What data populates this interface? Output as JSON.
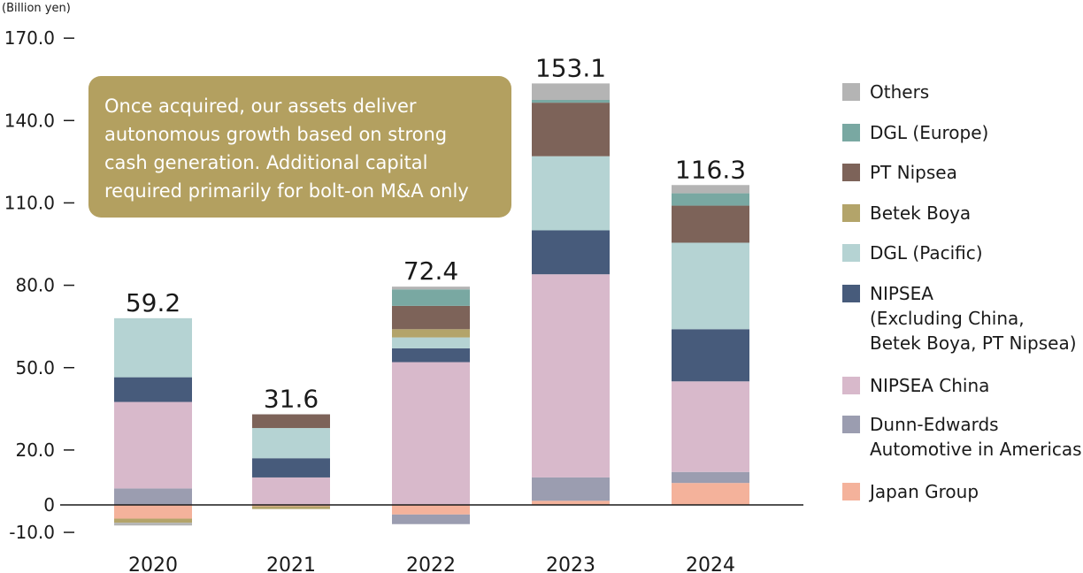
{
  "unit_label": "(Billion yen)",
  "callout": {
    "lines": [
      "Once acquired, our assets deliver",
      "autonomous growth based on strong",
      "cash generation. Additional capital",
      "required primarily for bolt-on M&A only"
    ],
    "color": "#b3a060"
  },
  "chart_data": {
    "type": "bar",
    "stacked": true,
    "categories": [
      "2020",
      "2021",
      "2022",
      "2023",
      "2024"
    ],
    "totals": [
      "59.2",
      "31.6",
      "72.4",
      "153.1",
      "116.3"
    ],
    "y_ticks": [
      "170.0",
      "140.0",
      "110.0",
      "80.0",
      "50.0",
      "20.0",
      "0",
      "-10.0"
    ],
    "y_tick_values": [
      170,
      140,
      110,
      80,
      50,
      20,
      0,
      -10
    ],
    "ylim": [
      -10,
      170
    ],
    "grid": false,
    "legend_position": "right",
    "series": [
      {
        "name": "Japan Group",
        "color": "#f4b29b",
        "values": [
          -5.0,
          -0.5,
          -3.5,
          1.5,
          8.0
        ]
      },
      {
        "name": "Dunn-Edwards\nAutomotive in Americas",
        "color": "#9b9db0",
        "values": [
          6.0,
          0,
          -3.5,
          8.5,
          4.0
        ]
      },
      {
        "name": "NIPSEA China",
        "color": "#d8b9cb",
        "values": [
          31.5,
          10.0,
          52.0,
          74.0,
          33.0
        ]
      },
      {
        "name": "NIPSEA\n(Excluding China,\nBetek Boya, PT Nipsea)",
        "color": "#475b7b",
        "values": [
          9.0,
          7.0,
          5.0,
          16.0,
          19.0
        ]
      },
      {
        "name": "DGL (Pacific)",
        "color": "#b5d3d3",
        "values": [
          21.5,
          11.0,
          4.0,
          27.0,
          31.5
        ]
      },
      {
        "name": "Betek Boya",
        "color": "#b3a46a",
        "values": [
          -1.5,
          -1.0,
          3.0,
          0,
          0
        ]
      },
      {
        "name": "PT Nipsea",
        "color": "#7d6359",
        "values": [
          0,
          5.0,
          8.5,
          19.5,
          13.5
        ]
      },
      {
        "name": "DGL (Europe)",
        "color": "#79a8a2",
        "values": [
          0,
          0,
          6.0,
          1.0,
          4.5
        ]
      },
      {
        "name": "Others",
        "color": "#b4b4b4",
        "values": [
          -1.0,
          0,
          1.0,
          6.0,
          3.0
        ]
      }
    ]
  },
  "legend_order": [
    "Others",
    "DGL (Europe)",
    "PT Nipsea",
    "Betek Boya",
    "DGL (Pacific)",
    "NIPSEA\n(Excluding China,\nBetek Boya, PT Nipsea)",
    "NIPSEA China",
    "Dunn-Edwards\nAutomotive in Americas",
    "Japan Group"
  ]
}
